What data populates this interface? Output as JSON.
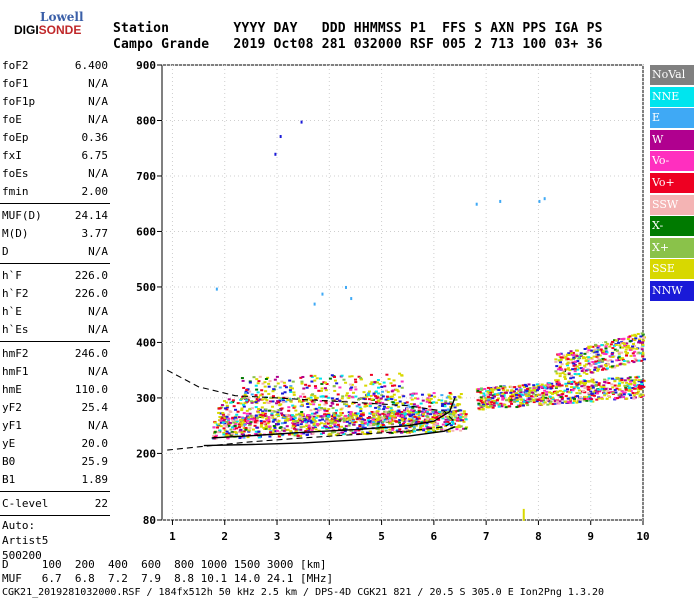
{
  "logo": {
    "line1": "Lowell",
    "line2a": "DIGI",
    "line2b": "SONDE"
  },
  "header": {
    "row1": "Station        YYYY DAY   DDD HHMMSS P1  FFS S AXN PPS IGA PS",
    "row2": "Campo Grande   2019 Oct08 281 032000 RSF 005 2 713 100 03+ 36"
  },
  "params": [
    [
      {
        "label": "foF2",
        "value": "6.400"
      },
      {
        "label": "foF1",
        "value": "N/A"
      },
      {
        "label": "foF1p",
        "value": "N/A"
      },
      {
        "label": "foE",
        "value": "N/A"
      },
      {
        "label": "foEp",
        "value": "0.36"
      },
      {
        "label": "fxI",
        "value": "6.75"
      },
      {
        "label": "foEs",
        "value": "N/A"
      },
      {
        "label": "fmin",
        "value": "2.00"
      }
    ],
    [
      {
        "label": "MUF(D)",
        "value": "24.14"
      },
      {
        "label": "M(D)",
        "value": "3.77"
      },
      {
        "label": "D",
        "value": "N/A"
      }
    ],
    [
      {
        "label": "h`F",
        "value": "226.0"
      },
      {
        "label": "h`F2",
        "value": "226.0"
      },
      {
        "label": "h`E",
        "value": "N/A"
      },
      {
        "label": "h`Es",
        "value": "N/A"
      }
    ],
    [
      {
        "label": "hmF2",
        "value": "246.0"
      },
      {
        "label": "hmF1",
        "value": "N/A"
      },
      {
        "label": "hmE",
        "value": "110.0"
      },
      {
        "label": "yF2",
        "value": "25.4"
      },
      {
        "label": "yF1",
        "value": "N/A"
      },
      {
        "label": "yE",
        "value": "20.0"
      },
      {
        "label": "B0",
        "value": "25.9"
      },
      {
        "label": "B1",
        "value": "1.89"
      }
    ],
    [
      {
        "label": "C-level",
        "value": "22"
      }
    ]
  ],
  "auto": [
    "Auto:",
    "Artist5",
    "500200"
  ],
  "legend": [
    {
      "label": "NoVal",
      "color": "#808080"
    },
    {
      "label": "NNE",
      "color": "#00e5ee"
    },
    {
      "label": "E",
      "color": "#3fa9f5"
    },
    {
      "label": "W",
      "color": "#b0008f"
    },
    {
      "label": "Vo-",
      "color": "#ff2fbf"
    },
    {
      "label": "Vo+",
      "color": "#ee0022"
    },
    {
      "label": "SSW",
      "color": "#f4b4b4"
    },
    {
      "label": "X-",
      "color": "#007a00"
    },
    {
      "label": "X+",
      "color": "#8ac24a"
    },
    {
      "label": "SSE",
      "color": "#d8d800"
    },
    {
      "label": "NNW",
      "color": "#1a1ad8"
    }
  ],
  "bottom": {
    "row1": "D     100  200  400  600  800 1000 1500 3000 [km]",
    "row2": "MUF   6.7  6.8  7.2  7.9  8.8 10.1 14.0 24.1 [MHz]",
    "footer": "CGK21_2019281032000.RSF / 184fx512h 50 kHz 2.5 km / DPS-4D CGK21 821 / 20.5 S 305.0 E Ion2Png 1.3.20"
  },
  "chart_data": {
    "type": "scatter",
    "xlim": [
      0.8,
      10
    ],
    "ylim": [
      80,
      900
    ],
    "x_ticks": [
      1,
      2,
      3,
      4,
      5,
      6,
      7,
      8,
      9,
      10
    ],
    "y_ticks": [
      80,
      200,
      300,
      400,
      500,
      600,
      700,
      800,
      900
    ],
    "grid": "dotted",
    "traces": {
      "o_trace": [
        [
          1.75,
          228
        ],
        [
          2.5,
          232
        ],
        [
          3.5,
          238
        ],
        [
          4.5,
          243
        ],
        [
          5.5,
          250
        ],
        [
          6.0,
          258
        ],
        [
          6.3,
          275
        ],
        [
          6.4,
          300
        ]
      ],
      "x_trace": [
        [
          6.4,
          248
        ],
        [
          6.2,
          240
        ],
        [
          5.5,
          231
        ],
        [
          4.5,
          224
        ],
        [
          3.5,
          219
        ],
        [
          2.5,
          216
        ],
        [
          1.6,
          214
        ]
      ],
      "dashed_profile": [
        [
          0.9,
          350
        ],
        [
          1.5,
          320
        ],
        [
          2.2,
          304
        ],
        [
          3.0,
          300
        ],
        [
          3.7,
          296
        ],
        [
          4.5,
          292
        ],
        [
          5.5,
          286
        ],
        [
          6.2,
          276
        ],
        [
          6.38,
          258
        ],
        [
          6.2,
          248
        ],
        [
          5.5,
          240
        ],
        [
          4.5,
          234
        ],
        [
          3.5,
          228
        ],
        [
          2.5,
          221
        ],
        [
          1.5,
          212
        ],
        [
          0.9,
          206
        ]
      ]
    },
    "clusters": [
      {
        "x": [
          1.75,
          6.6
        ],
        "y": [
          228,
          268
        ],
        "n": 900,
        "slope": 14
      },
      {
        "x": [
          1.85,
          6.5
        ],
        "y": [
          250,
          300
        ],
        "n": 600,
        "slope": 12
      },
      {
        "x": [
          2.3,
          5.4
        ],
        "y": [
          290,
          340
        ],
        "n": 220,
        "slope": 8
      },
      {
        "x": [
          6.8,
          10
        ],
        "y": [
          280,
          320
        ],
        "n": 700,
        "slope": 22
      },
      {
        "x": [
          8.3,
          10
        ],
        "y": [
          330,
          380
        ],
        "n": 350,
        "slope": 40
      }
    ],
    "isolated_points": [
      [
        1.83,
        497
      ],
      [
        2.95,
        740
      ],
      [
        3.05,
        772
      ],
      [
        3.45,
        798
      ],
      [
        3.7,
        470
      ],
      [
        3.85,
        488
      ],
      [
        4.3,
        500
      ],
      [
        4.4,
        480
      ],
      [
        6.8,
        650
      ],
      [
        7.25,
        655
      ],
      [
        8.0,
        655
      ],
      [
        8.1,
        660
      ],
      [
        7.7,
        82
      ]
    ]
  }
}
